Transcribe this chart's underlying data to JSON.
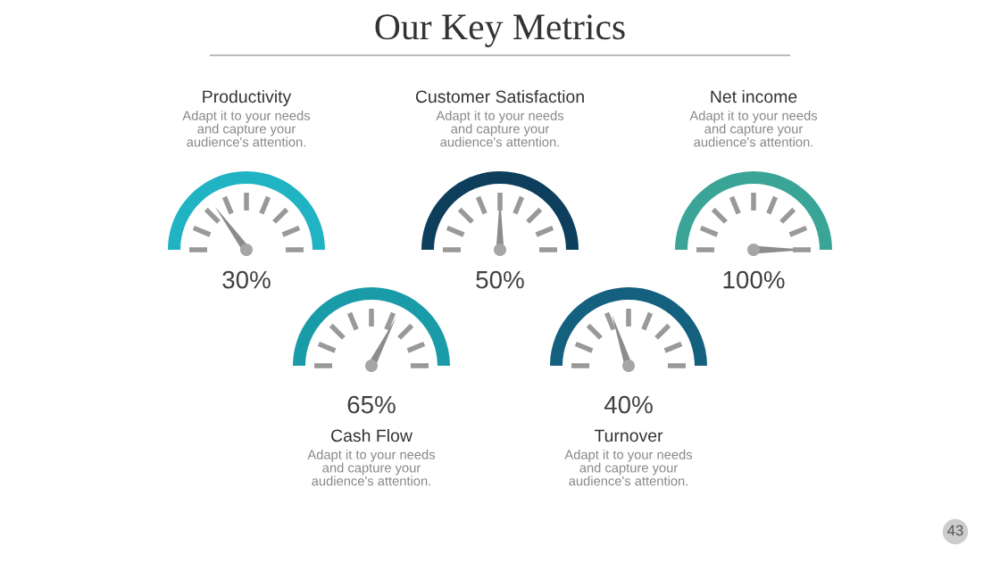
{
  "chart_data": [
    {
      "type": "other",
      "title": "Our Key Metrics",
      "annotations": [
        "43"
      ]
    },
    {
      "type": "other",
      "title": "Productivity",
      "values": [
        30
      ],
      "value_labels": [
        "30%"
      ],
      "color": "#1fb3c4",
      "annotations": [
        "Adapt it to your needs and capture your audience's attention."
      ]
    },
    {
      "type": "other",
      "title": "Customer Satisfaction",
      "values": [
        50
      ],
      "value_labels": [
        "50%"
      ],
      "color": "#0d3f5c",
      "annotations": [
        "Adapt it to your needs and capture your audience's attention."
      ]
    },
    {
      "type": "other",
      "title": "Net income",
      "values": [
        100
      ],
      "value_labels": [
        "100%"
      ],
      "color": "#3aa597",
      "annotations": [
        "Adapt it to your needs and capture your audience's attention."
      ]
    },
    {
      "type": "other",
      "title": "Cash Flow",
      "values": [
        65
      ],
      "value_labels": [
        "65%"
      ],
      "color": "#1a9ba8",
      "annotations": [
        "Adapt it to your needs and capture your audience's attention."
      ]
    },
    {
      "type": "other",
      "title": "Turnover",
      "values": [
        40
      ],
      "value_labels": [
        "40%"
      ],
      "color": "#14607f",
      "annotations": [
        "Adapt it to your needs and capture your audience's attention."
      ]
    }
  ]
}
